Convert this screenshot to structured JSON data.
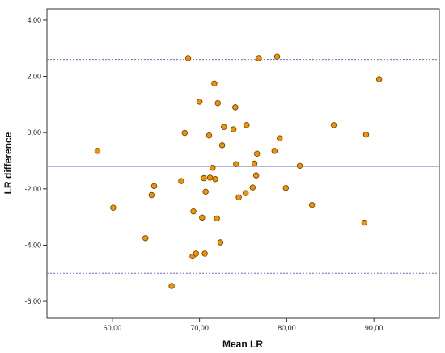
{
  "chart_data": {
    "type": "scatter",
    "xlabel": "Mean LR",
    "ylabel": "LR difference",
    "xlim": [
      52.5,
      97.5
    ],
    "ylim": [
      -6.6,
      4.4
    ],
    "xticks": [
      "60,00",
      "70,00",
      "80,00",
      "90,00"
    ],
    "yticks": [
      "4,00",
      "2,00",
      "0,00",
      "-2,00",
      "-4,00",
      "-6,00"
    ],
    "grid": false,
    "legend": "none",
    "reference_lines": [
      {
        "y": 2.6,
        "style": "dashed"
      },
      {
        "y": -1.2,
        "style": "solid"
      },
      {
        "y": -5.0,
        "style": "dashed"
      }
    ],
    "points": [
      {
        "x": 58.3,
        "y": -0.65
      },
      {
        "x": 60.1,
        "y": -2.67
      },
      {
        "x": 63.8,
        "y": -3.75
      },
      {
        "x": 64.5,
        "y": -2.22
      },
      {
        "x": 64.8,
        "y": -1.9
      },
      {
        "x": 66.8,
        "y": -5.45
      },
      {
        "x": 67.9,
        "y": -1.72
      },
      {
        "x": 68.3,
        "y": -0.01
      },
      {
        "x": 68.7,
        "y": 2.65
      },
      {
        "x": 69.2,
        "y": -4.4
      },
      {
        "x": 69.3,
        "y": -2.8
      },
      {
        "x": 69.6,
        "y": -4.3
      },
      {
        "x": 70.0,
        "y": 1.1
      },
      {
        "x": 70.3,
        "y": -3.02
      },
      {
        "x": 70.5,
        "y": -1.62
      },
      {
        "x": 70.6,
        "y": -4.3
      },
      {
        "x": 70.7,
        "y": -2.1
      },
      {
        "x": 71.1,
        "y": -0.1
      },
      {
        "x": 71.2,
        "y": -1.6
      },
      {
        "x": 71.5,
        "y": -1.25
      },
      {
        "x": 71.7,
        "y": 1.75
      },
      {
        "x": 71.8,
        "y": -1.65
      },
      {
        "x": 72.0,
        "y": -3.05
      },
      {
        "x": 72.1,
        "y": 1.05
      },
      {
        "x": 72.4,
        "y": -3.9
      },
      {
        "x": 72.6,
        "y": -0.45
      },
      {
        "x": 72.8,
        "y": 0.2
      },
      {
        "x": 73.9,
        "y": 0.12
      },
      {
        "x": 74.1,
        "y": 0.9
      },
      {
        "x": 74.2,
        "y": -1.12
      },
      {
        "x": 74.5,
        "y": -2.3
      },
      {
        "x": 75.3,
        "y": -2.15
      },
      {
        "x": 75.4,
        "y": 0.27
      },
      {
        "x": 76.1,
        "y": -1.95
      },
      {
        "x": 76.3,
        "y": -1.1
      },
      {
        "x": 76.5,
        "y": -1.52
      },
      {
        "x": 76.6,
        "y": -0.75
      },
      {
        "x": 76.8,
        "y": 2.65
      },
      {
        "x": 78.6,
        "y": -0.65
      },
      {
        "x": 78.9,
        "y": 2.7
      },
      {
        "x": 79.2,
        "y": -0.2
      },
      {
        "x": 79.9,
        "y": -1.97
      },
      {
        "x": 81.5,
        "y": -1.18
      },
      {
        "x": 82.9,
        "y": -2.57
      },
      {
        "x": 85.4,
        "y": 0.27
      },
      {
        "x": 88.9,
        "y": -3.2
      },
      {
        "x": 89.1,
        "y": -0.07
      },
      {
        "x": 90.6,
        "y": 1.9
      }
    ]
  },
  "colors": {
    "marker_fill": "#f39200",
    "marker_stroke": "#6b3d00",
    "reference_line": "#6a6ad0",
    "axis": "#333333"
  }
}
